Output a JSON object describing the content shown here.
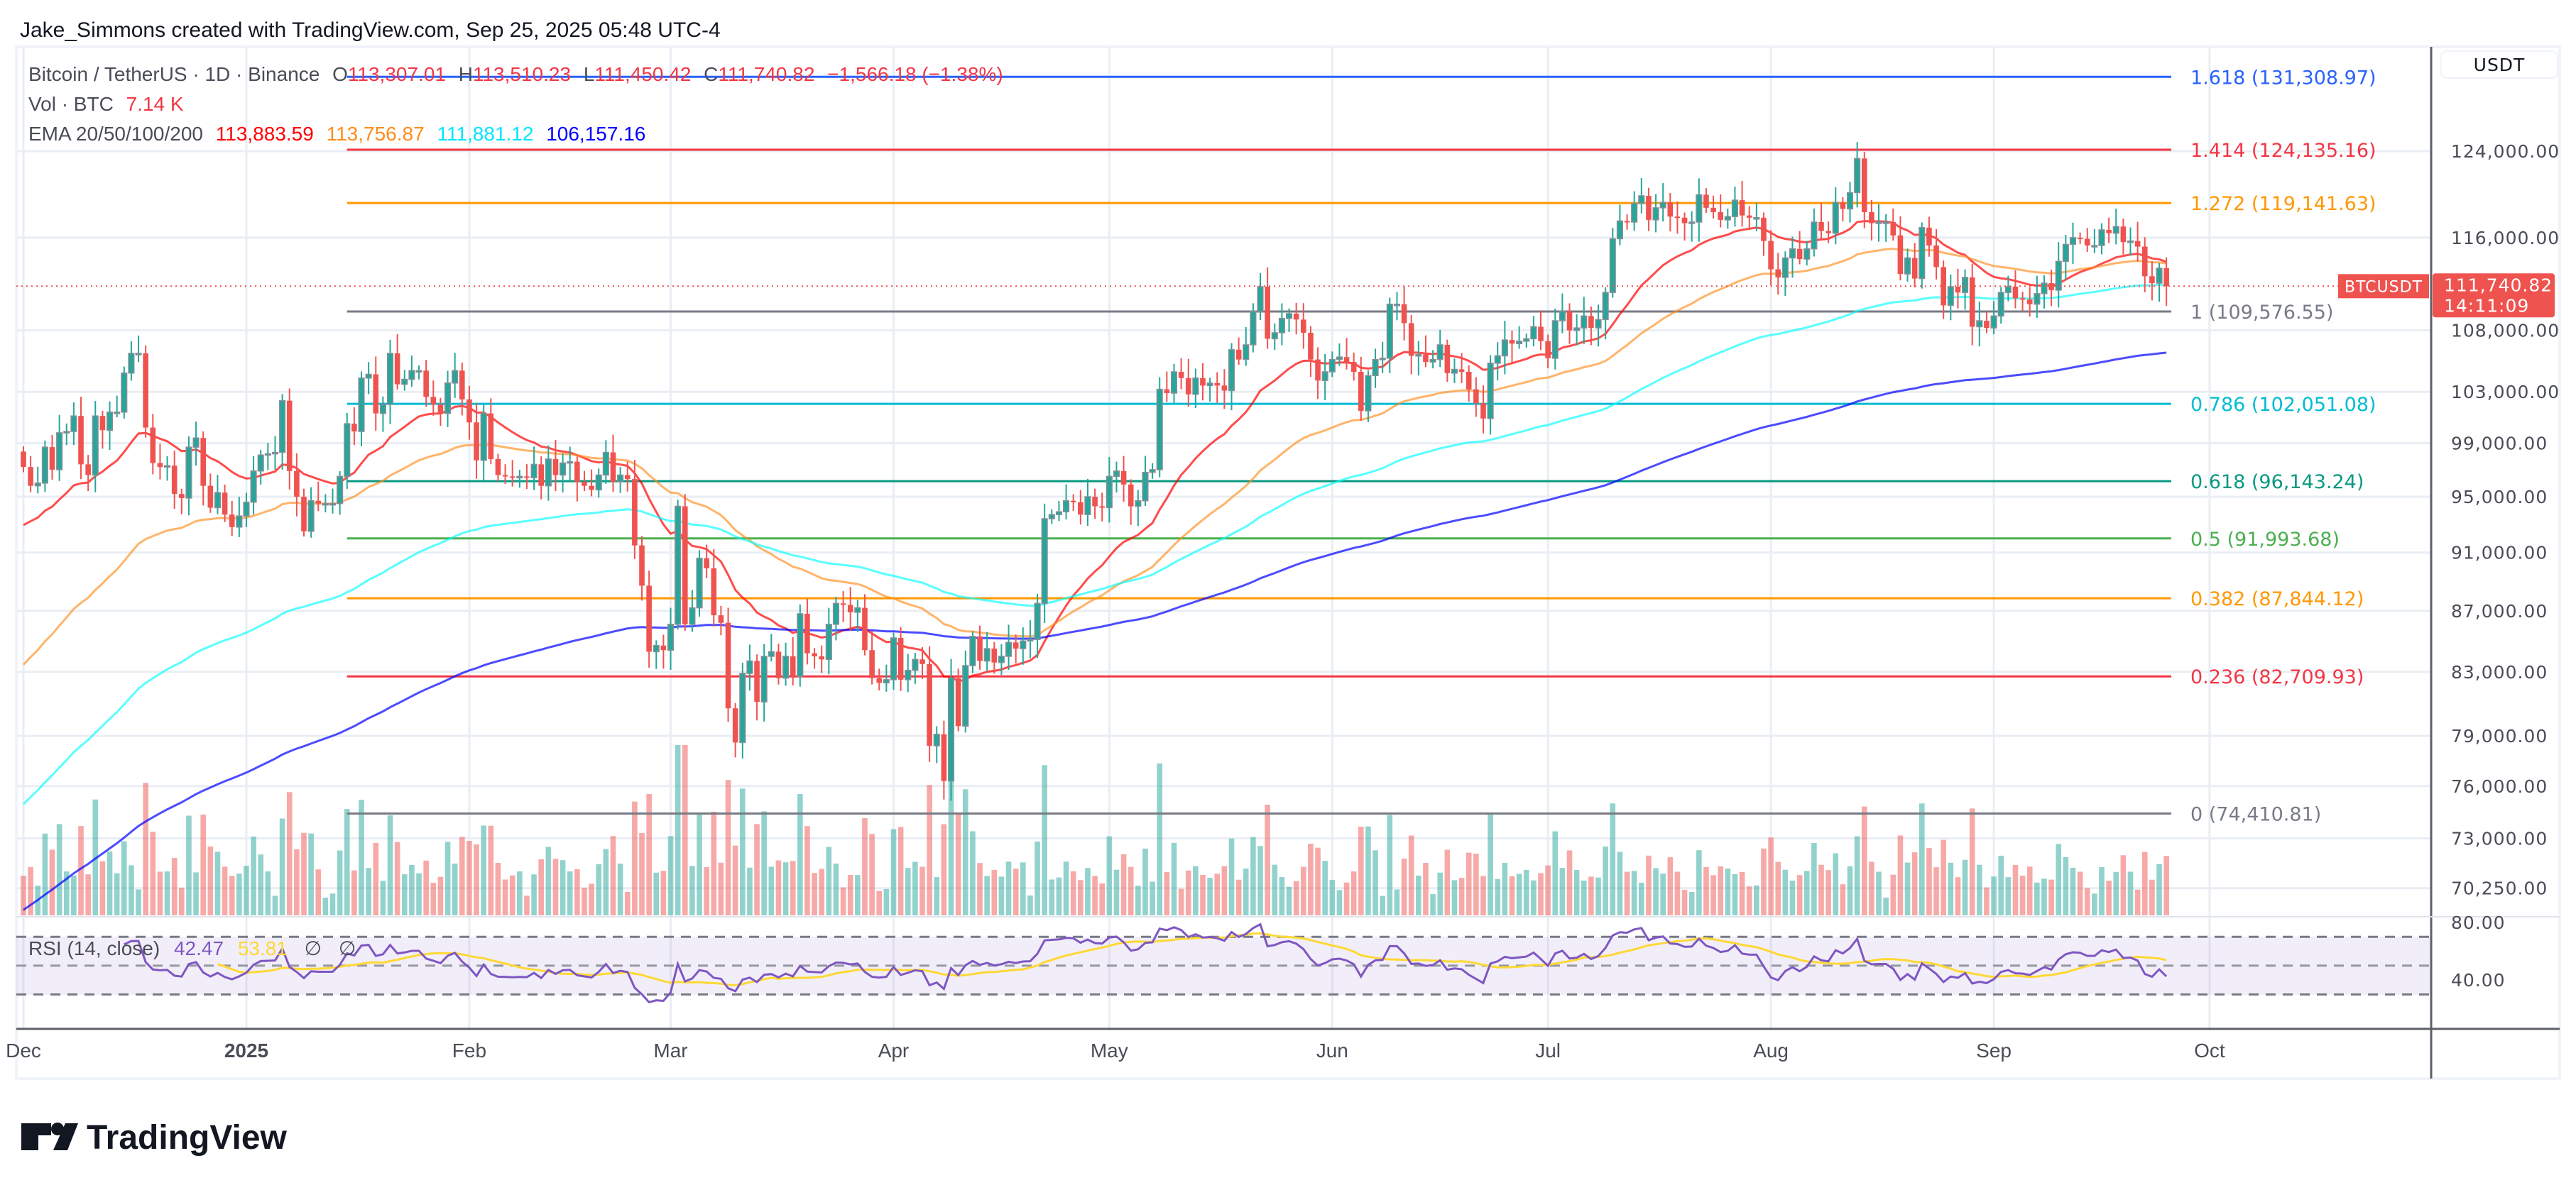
{
  "header": {
    "attribution": "Jake_Simmons created with TradingView.com, Sep 25, 2025 05:48 UTC-4"
  },
  "legend": {
    "symbol": "Bitcoin / TetherUS · 1D · Binance",
    "open_label": "O",
    "open": "113,307.01",
    "high_label": "H",
    "high": "113,510.23",
    "low_label": "L",
    "low": "111,450.42",
    "close_label": "C",
    "close": "111,740.82",
    "change": "−1,566.18 (−1.38%)",
    "volume_label": "Vol · BTC",
    "volume": "7.14 K",
    "ema_label": "EMA 20/50/100/200",
    "ema20": "113,883.59",
    "ema50": "113,756.87",
    "ema100": "111,881.12",
    "ema200": "106,157.16"
  },
  "price_axis": {
    "currency_button": "USDT",
    "ticks": [
      "124,000.00",
      "116,000.00",
      "108,000.00",
      "103,000.00",
      "99,000.00",
      "95,000.00",
      "91,000.00",
      "87,000.00",
      "83,000.00",
      "79,000.00",
      "76,000.00",
      "73,000.00",
      "70,250.00"
    ],
    "last_price": "111,740.82",
    "countdown": "14:11:09",
    "symbol_tag": "BTCUSDT"
  },
  "rsi": {
    "label": "RSI (14, close)",
    "value": "42.47",
    "ma_value": "53.81",
    "extra1": "∅",
    "extra2": "∅",
    "ticks": [
      "80.00",
      "40.00"
    ]
  },
  "time_axis": [
    {
      "label": "Dec",
      "date": "2024-12-01"
    },
    {
      "label": "2025",
      "date": "2025-01-01"
    },
    {
      "label": "Feb",
      "date": "2025-02-01"
    },
    {
      "label": "Mar",
      "date": "2025-03-01"
    },
    {
      "label": "Apr",
      "date": "2025-04-01"
    },
    {
      "label": "May",
      "date": "2025-05-01"
    },
    {
      "label": "Jun",
      "date": "2025-06-01"
    },
    {
      "label": "Jul",
      "date": "2025-07-01"
    },
    {
      "label": "Aug",
      "date": "2025-08-01"
    },
    {
      "label": "Sep",
      "date": "2025-09-01"
    },
    {
      "label": "Oct",
      "date": "2025-10-01"
    }
  ],
  "logo": {
    "text": "TradingView"
  },
  "colors": {
    "up": "#26a69a",
    "down": "#ef5350",
    "ema20": "#ff0000",
    "ema50": "#ff8c1a",
    "ema100": "#00ffff",
    "ema200": "#0000ff",
    "rsi": "#7e57c2",
    "rsi_ma": "#fdd835"
  },
  "chart_data": {
    "type": "candlestick",
    "symbol": "BTCUSDT",
    "interval": "1D",
    "x_range": [
      "2024-12-01",
      "2025-09-25"
    ],
    "y_scale": "log",
    "ylim": [
      70250,
      131308.97
    ],
    "last_open": 113307.01,
    "closes": [
      97.2,
      95.8,
      96.0,
      98.7,
      97.0,
      99.8,
      99.9,
      101.1,
      97.4,
      96.6,
      101.1,
      100.0,
      101.4,
      101.4,
      104.5,
      106.1,
      106.1,
      100.2,
      97.5,
      97.2,
      97.3,
      95.2,
      94.9,
      98.7,
      99.4,
      95.8,
      94.2,
      95.3,
      93.7,
      92.8,
      93.6,
      94.6,
      96.9,
      98.1,
      98.2,
      98.3,
      102.3,
      96.9,
      95.0,
      92.5,
      94.7,
      94.5,
      94.5,
      94.5,
      96.5,
      100.5,
      99.9,
      104.1,
      104.4,
      101.3,
      102.0,
      106.1,
      103.6,
      104.0,
      104.7,
      104.7,
      102.6,
      102.0,
      101.3,
      103.7,
      104.7,
      102.4,
      100.6,
      97.7,
      101.3,
      97.8,
      96.6,
      96.5,
      96.4,
      96.5,
      96.4,
      97.4,
      95.8,
      97.8,
      96.6,
      97.5,
      97.6,
      96.1,
      95.8,
      95.5,
      96.6,
      98.3,
      96.1,
      96.6,
      96.3,
      91.5,
      88.7,
      84.3,
      84.7,
      84.4,
      86.1,
      94.3,
      86.1,
      87.2,
      90.6,
      89.9,
      86.7,
      86.2,
      80.7,
      78.6,
      82.9,
      83.7,
      81.1,
      84.0,
      84.3,
      82.6,
      84.0,
      82.7,
      86.8,
      84.2,
      84.0,
      83.8,
      86.1,
      87.5,
      87.4,
      86.9,
      87.2,
      84.4,
      82.6,
      82.3,
      82.5,
      85.2,
      82.5,
      83.1,
      83.8,
      83.5,
      78.4,
      79.1,
      76.3,
      82.6,
      79.6,
      83.4,
      85.3,
      83.7,
      84.5,
      83.6,
      84.0,
      84.9,
      84.5,
      85.0,
      85.1,
      87.5,
      93.4,
      93.7,
      93.9,
      94.7,
      94.6,
      93.7,
      95.0,
      94.3,
      94.2,
      96.5,
      96.9,
      95.9,
      94.3,
      94.7,
      96.8,
      97.0,
      103.2,
      102.9,
      104.6,
      104.1,
      102.8,
      104.1,
      103.5,
      103.7,
      103.5,
      103.1,
      106.4,
      105.6,
      106.8,
      109.6,
      111.7,
      107.3,
      107.8,
      109.0,
      109.4,
      108.9,
      107.8,
      105.6,
      103.9,
      104.6,
      105.6,
      105.8,
      105.4,
      104.6,
      101.5,
      104.3,
      105.6,
      105.7,
      110.2,
      110.2,
      108.6,
      105.9,
      106.0,
      105.4,
      105.6,
      106.8,
      104.5,
      104.8,
      104.6,
      103.2,
      102.1,
      100.9,
      105.3,
      105.9,
      107.2,
      106.9,
      107.1,
      107.3,
      108.3,
      107.1,
      105.7,
      108.8,
      109.6,
      108.0,
      108.2,
      109.2,
      108.2,
      108.9,
      111.2,
      115.9,
      117.5,
      117.4,
      119.1,
      119.8,
      117.6,
      118.7,
      119.2,
      117.9,
      117.8,
      117.3,
      117.4,
      119.9,
      118.7,
      118.3,
      117.6,
      117.9,
      119.4,
      118.0,
      117.8,
      117.8,
      115.7,
      113.2,
      112.5,
      114.2,
      115.0,
      114.1,
      115.0,
      117.4,
      116.6,
      116.4,
      119.2,
      118.6,
      120.1,
      123.3,
      118.3,
      117.3,
      117.4,
      117.4,
      116.2,
      112.8,
      114.2,
      112.4,
      116.9,
      115.3,
      113.4,
      110.1,
      111.7,
      111.2,
      112.5,
      108.3,
      108.8,
      108.2,
      109.2,
      111.2,
      111.7,
      110.7,
      110.6,
      110.2,
      111.1,
      112.0,
      111.4,
      113.9,
      115.4,
      116.0,
      115.9,
      115.3,
      115.3,
      116.7,
      116.4,
      117.0,
      115.6,
      115.7,
      115.2,
      112.6,
      112.0,
      113.3,
      111.74
    ],
    "closes_unit": "thousand USDT",
    "fib_levels": [
      {
        "ratio": "1.618",
        "price": 131308.97,
        "label": "1.618 (131,308.97)",
        "color": "#2962ff"
      },
      {
        "ratio": "1.414",
        "price": 124135.16,
        "label": "1.414 (124,135.16)",
        "color": "#f23645"
      },
      {
        "ratio": "1.272",
        "price": 119141.63,
        "label": "1.272 (119,141.63)",
        "color": "#ff9800"
      },
      {
        "ratio": "1",
        "price": 109576.55,
        "label": "1 (109,576.55)",
        "color": "#787b86"
      },
      {
        "ratio": "0.786",
        "price": 102051.08,
        "label": "0.786 (102,051.08)",
        "color": "#00bcd4"
      },
      {
        "ratio": "0.618",
        "price": 96143.24,
        "label": "0.618 (96,143.24)",
        "color": "#089981"
      },
      {
        "ratio": "0.5",
        "price": 91993.68,
        "label": "0.5 (91,993.68)",
        "color": "#4caf50"
      },
      {
        "ratio": "0.382",
        "price": 87844.12,
        "label": "0.382 (87,844.12)",
        "color": "#ff9800"
      },
      {
        "ratio": "0.236",
        "price": 82709.93,
        "label": "0.236 (82,709.93)",
        "color": "#f23645"
      },
      {
        "ratio": "0",
        "price": 74410.81,
        "label": "0 (74,410.81)",
        "color": "#787b86"
      }
    ],
    "fib_start_date": "2025-01-15",
    "rsi_levels": [
      70,
      50,
      30
    ]
  }
}
